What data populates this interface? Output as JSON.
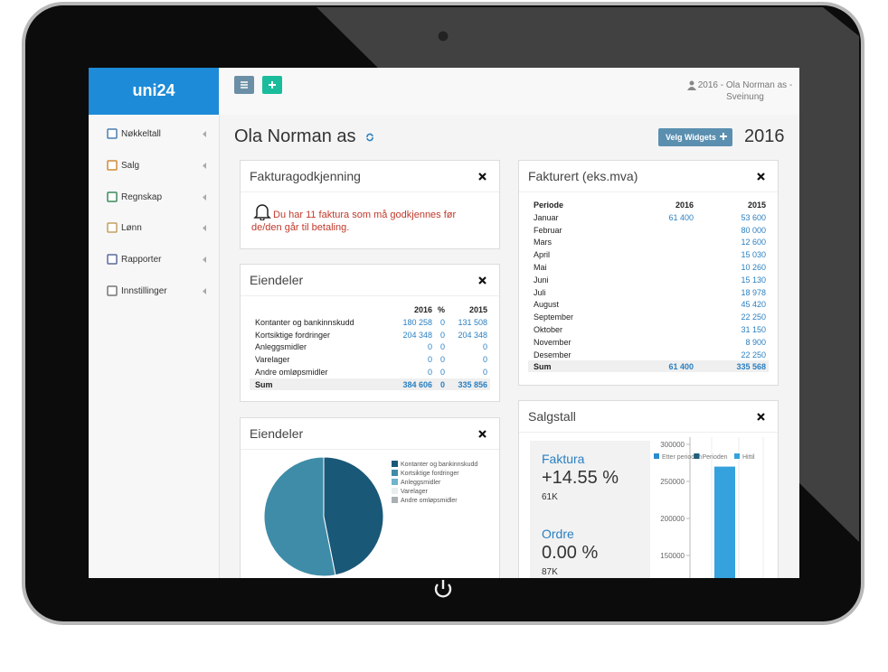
{
  "sidebar": {
    "logo": "uni24",
    "menu": [
      "Nøkkeltall",
      "Salg",
      "Regnskap",
      "Lønn",
      "Rapporter",
      "Innstillinger"
    ]
  },
  "topbar": {
    "user": [
      "2016 - Ola Norman as -",
      "Sveinung"
    ]
  },
  "page": {
    "title": "Ola Norman as",
    "button": "Velg Widgets",
    "year": "2016"
  },
  "widgets": {
    "approval": {
      "title": "Fakturagodkjenning",
      "message": "Du har 11 faktura som må godkjennes før de/den går til betaling."
    },
    "assets_table": {
      "title": "Eiendeler",
      "columns": [
        "2016",
        "%",
        "2015"
      ],
      "rows": [
        [
          "Kontanter og bankinnskudd",
          "180 258",
          "0",
          "131 508"
        ],
        [
          "Kortsiktige fordringer",
          "204 348",
          "0",
          "204 348"
        ],
        [
          "Anleggsmidler",
          "0",
          "0",
          "0"
        ],
        [
          "Varelager",
          "0",
          "0",
          "0"
        ],
        [
          "Andre omløpsmidler",
          "0",
          "0",
          "0"
        ]
      ],
      "sum": [
        "Sum",
        "384 606",
        "0",
        "335 856"
      ]
    },
    "assets_pie": {
      "type": "pie",
      "title": "Eiendeler",
      "categories": [
        "Kontanter og bankinnskudd",
        "Kortsiktige fordringer",
        "Anleggsmidler",
        "Varelager",
        "Andre omløpsmidler"
      ],
      "values": [
        180258,
        204348,
        0,
        0,
        0
      ],
      "colors": [
        "#1a5878",
        "#3f8ca8",
        "#6fb3cc",
        "#e8eef0",
        "#a9b0b3"
      ]
    },
    "invoiced": {
      "title": "Fakturert (eks.mva)",
      "columns": [
        "Periode",
        "2016",
        "2015"
      ],
      "rows": [
        [
          "Januar",
          "61 400",
          "53 600"
        ],
        [
          "Februar",
          null,
          "80 000"
        ],
        [
          "Mars",
          null,
          "12 600"
        ],
        [
          "April",
          null,
          "15 030"
        ],
        [
          "Mai",
          null,
          "10 260"
        ],
        [
          "Juni",
          null,
          "15 130"
        ],
        [
          "Juli",
          null,
          "18 978"
        ],
        [
          "August",
          null,
          "45 420"
        ],
        [
          "September",
          null,
          "22 250"
        ],
        [
          "Oktober",
          null,
          "31 150"
        ],
        [
          "November",
          null,
          "8 900"
        ],
        [
          "Desember",
          null,
          "22 250"
        ]
      ],
      "sum": [
        "Sum",
        "61 400",
        "335 568"
      ]
    },
    "sales": {
      "title": "Salgstall",
      "kpis": [
        {
          "label": "Faktura",
          "value": "+14.55 %",
          "sub": "61K"
        },
        {
          "label": "Ordre",
          "value": "0.00 %",
          "sub": "87K"
        }
      ],
      "chart": {
        "type": "bar",
        "categories": [
          null
        ],
        "series": [
          {
            "name": "Etter perioden",
            "color": "#2a8ccf",
            "values": [
              null
            ]
          },
          {
            "name": "Perioden",
            "color": "#1f5f7f",
            "values": [
              null
            ]
          },
          {
            "name": "Hittil",
            "color": "#35a2dd",
            "values": [
              270000
            ]
          }
        ],
        "ylim": [
          0,
          300000
        ],
        "yticks": [
          150000,
          200000,
          250000,
          300000
        ]
      }
    }
  }
}
